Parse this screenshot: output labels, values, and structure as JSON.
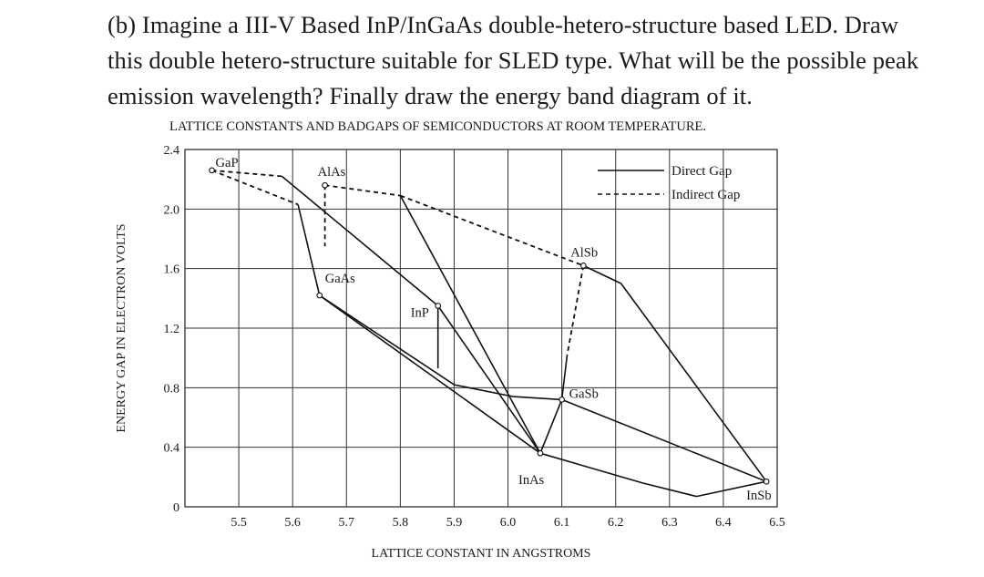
{
  "question": {
    "line1": "(b) Imagine a III-V Based InP/InGaAs double-hetero-structure based LED. Draw",
    "line2": "this double hetero-structure suitable for SLED type. What will be the possible peak",
    "line3": "emission wavelength? Finally draw the energy band diagram of it."
  },
  "chart_data": {
    "type": "line",
    "title": "LATTICE CONSTANTS AND BADGAPS OF SEMICONDUCTORS AT ROOM TEMPERATURE.",
    "xlabel": "LATTICE CONSTANT IN ANGSTROMS",
    "ylabel": "ENERGY GAP IN ELECTRON VOLTS",
    "xlim": [
      5.4,
      6.5
    ],
    "ylim": [
      0,
      2.4
    ],
    "x_ticks": [
      "5.5",
      "5.6",
      "5.7",
      "5.8",
      "5.9",
      "6.0",
      "6.1",
      "6.2",
      "6.3",
      "6.4",
      "6.5"
    ],
    "y_ticks": [
      "0",
      "0.4",
      "0.8",
      "1.2",
      "1.6",
      "2.0",
      "2.4"
    ],
    "grid": true,
    "legend": {
      "position": "top-right",
      "entries": [
        {
          "label": "Direct Gap",
          "style": "solid"
        },
        {
          "label": "Indirect Gap",
          "style": "dashed"
        }
      ]
    },
    "points": [
      {
        "name": "GaP",
        "x": 5.45,
        "y": 2.26
      },
      {
        "name": "AlAs",
        "x": 5.66,
        "y": 2.16
      },
      {
        "name": "GaAs",
        "x": 5.65,
        "y": 1.42
      },
      {
        "name": "InP",
        "x": 5.87,
        "y": 1.35
      },
      {
        "name": "AlSb",
        "x": 6.14,
        "y": 1.62
      },
      {
        "name": "GaSb",
        "x": 6.1,
        "y": 0.72
      },
      {
        "name": "InAs",
        "x": 6.06,
        "y": 0.36
      },
      {
        "name": "InSb",
        "x": 6.48,
        "y": 0.17
      }
    ],
    "series": [
      {
        "style": "dashed",
        "points": [
          [
            5.45,
            2.26
          ],
          [
            5.58,
            2.22
          ]
        ]
      },
      {
        "style": "dashed",
        "points": [
          [
            5.45,
            2.26
          ],
          [
            5.61,
            2.03
          ]
        ]
      },
      {
        "style": "dashed",
        "points": [
          [
            5.66,
            2.16
          ],
          [
            5.8,
            2.09
          ]
        ]
      },
      {
        "style": "dashed",
        "points": [
          [
            5.8,
            2.09
          ],
          [
            6.14,
            1.62
          ]
        ]
      },
      {
        "style": "dashed",
        "points": [
          [
            5.66,
            2.16
          ],
          [
            5.66,
            1.75
          ]
        ]
      },
      {
        "style": "dashed",
        "points": [
          [
            6.14,
            1.62
          ],
          [
            6.11,
            1.02
          ]
        ]
      },
      {
        "style": "solid",
        "points": [
          [
            5.58,
            2.22
          ],
          [
            5.87,
            1.35
          ]
        ]
      },
      {
        "style": "solid",
        "points": [
          [
            5.61,
            2.03
          ],
          [
            5.65,
            1.42
          ]
        ]
      },
      {
        "style": "solid",
        "points": [
          [
            5.65,
            1.42
          ],
          [
            6.06,
            0.36
          ]
        ]
      },
      {
        "style": "solid",
        "points": [
          [
            5.65,
            1.42
          ],
          [
            5.9,
            0.82
          ],
          [
            6.01,
            0.74
          ],
          [
            6.1,
            0.72
          ]
        ]
      },
      {
        "style": "solid",
        "points": [
          [
            5.87,
            1.35
          ],
          [
            6.06,
            0.36
          ]
        ]
      },
      {
        "style": "solid",
        "points": [
          [
            5.87,
            1.35
          ],
          [
            5.87,
            0.93
          ]
        ]
      },
      {
        "style": "solid",
        "points": [
          [
            5.8,
            2.09
          ],
          [
            6.06,
            0.36
          ]
        ]
      },
      {
        "style": "solid",
        "points": [
          [
            6.1,
            0.72
          ],
          [
            6.06,
            0.36
          ]
        ]
      },
      {
        "style": "solid",
        "points": [
          [
            6.1,
            0.72
          ],
          [
            6.11,
            1.02
          ]
        ]
      },
      {
        "style": "solid",
        "points": [
          [
            6.14,
            1.62
          ],
          [
            6.21,
            1.5
          ]
        ]
      },
      {
        "style": "solid",
        "points": [
          [
            6.21,
            1.5
          ],
          [
            6.48,
            0.17
          ]
        ]
      },
      {
        "style": "solid",
        "points": [
          [
            6.1,
            0.72
          ],
          [
            6.48,
            0.17
          ]
        ]
      },
      {
        "style": "solid",
        "points": [
          [
            6.06,
            0.36
          ],
          [
            6.25,
            0.16
          ],
          [
            6.35,
            0.07
          ],
          [
            6.48,
            0.17
          ]
        ]
      }
    ]
  }
}
